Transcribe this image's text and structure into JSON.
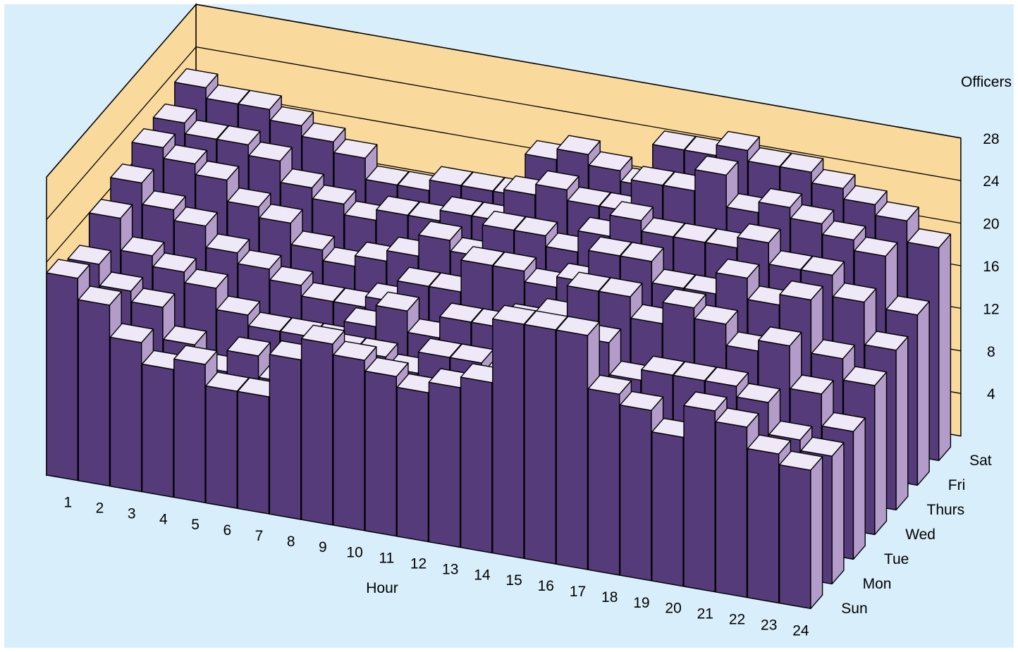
{
  "chart_data": {
    "type": "bar3d",
    "title": "",
    "xlabel": "Hour",
    "zlabel": "Officers",
    "hours": [
      "1",
      "2",
      "3",
      "4",
      "5",
      "6",
      "7",
      "8",
      "9",
      "10",
      "11",
      "12",
      "13",
      "14",
      "15",
      "16",
      "17",
      "18",
      "19",
      "20",
      "21",
      "22",
      "23",
      "24"
    ],
    "days": [
      "Sun",
      "Mon",
      "Tue",
      "Wed",
      "Thurs",
      "Fri",
      "Sat"
    ],
    "z_ticks": [
      "4",
      "8",
      "12",
      "16",
      "20",
      "24",
      "28"
    ],
    "zlim": [
      0,
      28
    ],
    "grid": "major z gridlines on back wall",
    "series": [
      {
        "name": "Sun",
        "values": [
          19,
          17,
          14,
          12,
          13,
          11,
          11,
          15,
          17,
          16,
          15,
          14,
          15,
          16,
          22,
          22,
          22,
          17,
          16,
          14,
          17,
          16,
          14,
          13
        ]
      },
      {
        "name": "Mon",
        "values": [
          18,
          16,
          15,
          12,
          10,
          12,
          10,
          12,
          14,
          14,
          13,
          15,
          15,
          14,
          17,
          19,
          19,
          16,
          17,
          17,
          17,
          16,
          13,
          12
        ]
      },
      {
        "name": "Tue",
        "values": [
          20,
          17,
          16,
          15,
          13,
          12,
          12,
          12,
          14,
          16,
          14,
          16,
          16,
          17,
          18,
          21,
          21,
          19,
          21,
          20,
          18,
          19,
          15,
          12
        ]
      },
      {
        "name": "Wed",
        "values": [
          21,
          19,
          18,
          16,
          15,
          14,
          13,
          13,
          14,
          16,
          16,
          19,
          19,
          18,
          19,
          22,
          22,
          20,
          20,
          22,
          20,
          21,
          16,
          14
        ]
      },
      {
        "name": "Thurs",
        "values": [
          22,
          21,
          20,
          18,
          17,
          15,
          14,
          15,
          16,
          18,
          17,
          20,
          20,
          19,
          21,
          23,
          22,
          22,
          22,
          23,
          21,
          21,
          19,
          15
        ]
      },
      {
        "name": "Fri",
        "values": [
          22,
          21,
          21,
          20,
          18,
          17,
          16,
          17,
          17,
          18,
          18,
          21,
          22,
          21,
          21,
          24,
          24,
          26,
          23,
          24,
          23,
          22,
          21,
          16
        ]
      },
      {
        "name": "Sat",
        "values": [
          23,
          22,
          22,
          21,
          20,
          19,
          17,
          17,
          18,
          18,
          18,
          22,
          23,
          22,
          21,
          25,
          25,
          26,
          25,
          25,
          24,
          23,
          22,
          20
        ]
      }
    ],
    "colors": {
      "background": "#d8effb",
      "wall": "#fad99d",
      "bar_front": "#553b79",
      "bar_side": "#b39cca",
      "bar_top": "#efe8f7",
      "edge": "#000000"
    }
  }
}
